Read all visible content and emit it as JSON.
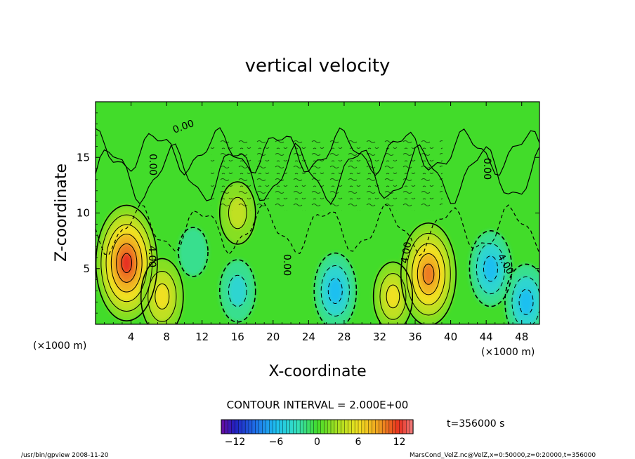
{
  "chart_data": {
    "type": "heatmap",
    "title": "vertical velocity",
    "xlabel": "X-coordinate",
    "ylabel": "Z-coordinate",
    "x_unit_left": "(×1000 m)",
    "x_unit_right": "(×1000 m)",
    "xlim": [
      0,
      50
    ],
    "ylim": [
      0,
      20
    ],
    "x_ticks": [
      4,
      8,
      12,
      16,
      20,
      24,
      28,
      32,
      36,
      40,
      44,
      48
    ],
    "y_ticks": [
      5,
      10,
      15
    ],
    "contour_interval_text": "CONTOUR INTERVAL = 2.000E+00",
    "contour_labels": [
      "4.00",
      "0.00",
      "0.00",
      "0.00",
      "4.00",
      "4.00",
      "0.00"
    ],
    "time_text": "t=356000 s",
    "colorbar": {
      "ticks": [
        "−12",
        "−6",
        "0",
        "6",
        "12"
      ],
      "tick_values": [
        -12,
        -6,
        0,
        6,
        12
      ],
      "range": [
        -14,
        14
      ]
    },
    "cells": [
      {
        "x": 3.5,
        "z": 5.5,
        "w": 12
      },
      {
        "x": 7.5,
        "z": 2.5,
        "w": 6
      },
      {
        "x": 16.0,
        "z": 10.0,
        "w": 4
      },
      {
        "x": 16.0,
        "z": 3.0,
        "w": -4
      },
      {
        "x": 11.0,
        "z": 6.5,
        "w": -2
      },
      {
        "x": 27.0,
        "z": 3.0,
        "w": -6
      },
      {
        "x": 33.5,
        "z": 2.5,
        "w": 5
      },
      {
        "x": 37.5,
        "z": 4.5,
        "w": 10
      },
      {
        "x": 44.5,
        "z": 5.0,
        "w": -6
      },
      {
        "x": 48.5,
        "z": 2.0,
        "w": -6
      }
    ],
    "colors": {
      "background": "#42dc2a",
      "contour_positive": "#000000",
      "contour_negative_dashed": "#000000"
    }
  },
  "footer": {
    "left": "/usr/bin/gpview   2008-11-20",
    "right": "MarsCond_VelZ.nc@VelZ,x=0:50000,z=0:20000,t=356000"
  }
}
